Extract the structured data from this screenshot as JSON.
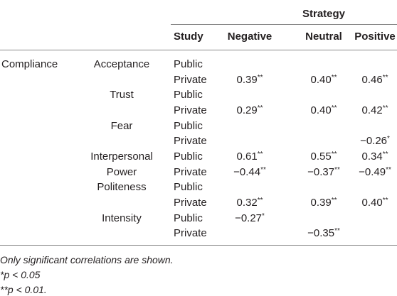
{
  "table": {
    "group_header": "Strategy",
    "columns": [
      "Study",
      "Negative",
      "Neutral",
      "Positive"
    ],
    "rows": [
      {
        "variable": "Compliance",
        "sub": "Acceptance",
        "study": "Public",
        "values": [
          null,
          null,
          null
        ]
      },
      {
        "study": "Private",
        "values": [
          {
            "text": "0.39",
            "sup": "**"
          },
          {
            "text": "0.40",
            "sup": "**"
          },
          {
            "text": "0.46",
            "sup": "**"
          }
        ]
      },
      {
        "sub": "Trust",
        "study": "Public",
        "values": [
          null,
          null,
          null
        ]
      },
      {
        "study": "Private",
        "values": [
          {
            "text": "0.29",
            "sup": "**"
          },
          {
            "text": "0.40",
            "sup": "**"
          },
          {
            "text": "0.42",
            "sup": "**"
          }
        ]
      },
      {
        "sub": "Fear",
        "study": "Public",
        "values": [
          null,
          null,
          null
        ]
      },
      {
        "study": "Private",
        "values": [
          null,
          null,
          {
            "text": "−0.26",
            "sup": "*"
          }
        ]
      },
      {
        "sub": "Interpersonal",
        "study": "Public",
        "values": [
          {
            "text": "0.61",
            "sup": "**"
          },
          {
            "text": "0.55",
            "sup": "**"
          },
          {
            "text": "0.34",
            "sup": "**"
          }
        ]
      },
      {
        "sub": "Power",
        "study": "Private",
        "values": [
          {
            "text": "−0.44",
            "sup": "**"
          },
          {
            "text": "−0.37",
            "sup": "**"
          },
          {
            "text": "−0.49",
            "sup": "**"
          }
        ]
      },
      {
        "sub": "Politeness",
        "study": "Public",
        "values": [
          null,
          null,
          null
        ]
      },
      {
        "study": "Private",
        "values": [
          {
            "text": "0.32",
            "sup": "**"
          },
          {
            "text": "0.39",
            "sup": "**"
          },
          {
            "text": "0.40",
            "sup": "**"
          }
        ]
      },
      {
        "sub": "Intensity",
        "study": "Public",
        "values": [
          {
            "text": "−0.27",
            "sup": "*"
          },
          null,
          null
        ]
      },
      {
        "study": "Private",
        "values": [
          null,
          {
            "text": "−0.35",
            "sup": "**"
          },
          null
        ]
      }
    ],
    "notes": [
      "Only significant correlations are shown.",
      "*p < 0.05",
      "**p < 0.01."
    ]
  }
}
